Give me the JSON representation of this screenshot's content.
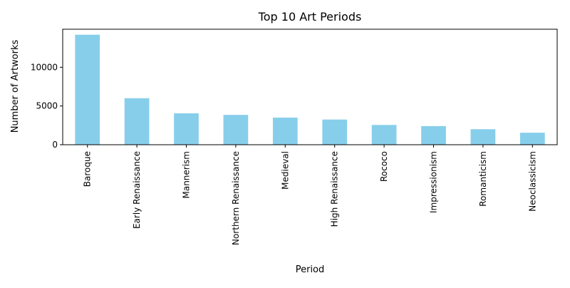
{
  "chart_data": {
    "type": "bar",
    "title": "Top 10 Art Periods",
    "xlabel": "Period",
    "ylabel": "Number of Artworks",
    "categories": [
      "Baroque",
      "Early Renaissance",
      "Mannerism",
      "Northern Renaissance",
      "Medieval",
      "High Renaissance",
      "Rococo",
      "Impressionism",
      "Romanticism",
      "Neoclassicism"
    ],
    "values": [
      14200,
      6000,
      4050,
      3850,
      3500,
      3250,
      2550,
      2400,
      2000,
      1550
    ],
    "ylim": [
      0,
      14910
    ],
    "yticks": [
      0,
      5000,
      10000
    ],
    "bar_color": "#87ceeb",
    "grid": false,
    "legend": "none"
  }
}
